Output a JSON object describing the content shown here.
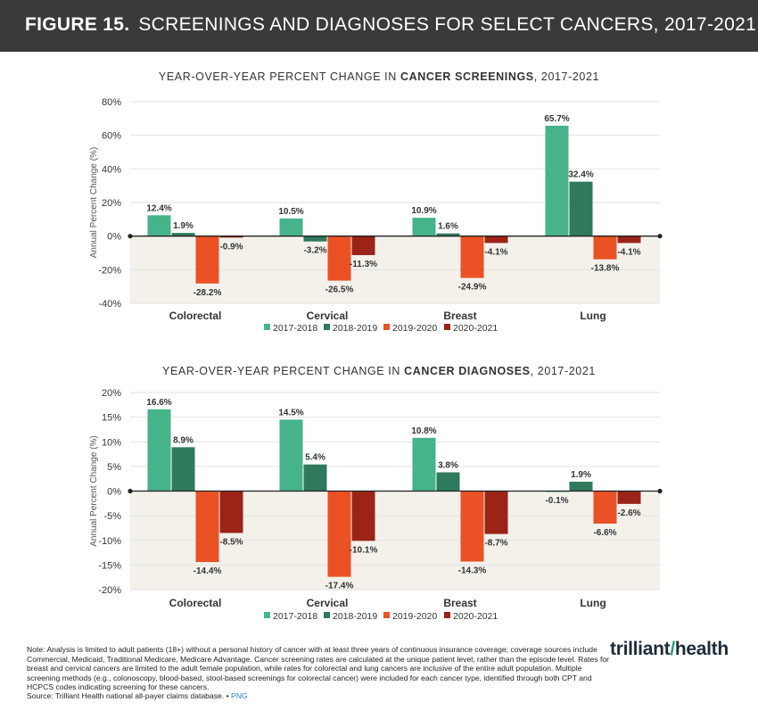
{
  "header": {
    "figure_label": "FIGURE 15.",
    "title": "SCREENINGS AND DIAGNOSES FOR SELECT CANCERS, 2017-2021"
  },
  "colors": {
    "2017-2018": "#46b38a",
    "2018-2019": "#2f7a5c",
    "2019-2020": "#ea5124",
    "2020-2021": "#9b2318",
    "negative_band": "#f3f1ea",
    "header_bg": "#3a3a3a"
  },
  "chart_data": [
    {
      "type": "bar",
      "title_prefix": "YEAR-OVER-YEAR PERCENT CHANGE IN ",
      "title_bold": "CANCER SCREENINGS",
      "title_suffix": ", 2017-2021",
      "ylabel": "Annual Percent Change (%)",
      "ylim": [
        -40,
        80
      ],
      "yticks": [
        80,
        60,
        40,
        20,
        0,
        -20,
        -40
      ],
      "ytick_labels": [
        "80%",
        "60%",
        "40%",
        "20%",
        "0%",
        "-20%",
        "-40%"
      ],
      "categories": [
        "Colorectal",
        "Cervical",
        "Breast",
        "Lung"
      ],
      "series": [
        {
          "name": "2017-2018",
          "values": [
            12.4,
            10.5,
            10.9,
            65.7
          ],
          "labels": [
            "12.4%",
            "10.5%",
            "10.9%",
            "65.7%"
          ]
        },
        {
          "name": "2018-2019",
          "values": [
            1.9,
            -3.2,
            1.6,
            32.4
          ],
          "labels": [
            "1.9%",
            "-3.2%",
            "1.6%",
            "32.4%"
          ]
        },
        {
          "name": "2019-2020",
          "values": [
            -28.2,
            -26.5,
            -24.9,
            -13.8
          ],
          "labels": [
            "-28.2%",
            "-26.5%",
            "-24.9%",
            "-13.8%"
          ]
        },
        {
          "name": "2020-2021",
          "values": [
            -0.9,
            -11.3,
            -4.1,
            -4.1
          ],
          "labels": [
            "-0.9%",
            "-11.3%",
            "-4.1%",
            "-4.1%"
          ]
        }
      ],
      "legend_position": "bottom"
    },
    {
      "type": "bar",
      "title_prefix": "YEAR-OVER-YEAR PERCENT CHANGE IN ",
      "title_bold": "CANCER DIAGNOSES",
      "title_suffix": ", 2017-2021",
      "ylabel": "Annual Percent Change (%)",
      "ylim": [
        -20,
        20
      ],
      "yticks": [
        20,
        15,
        10,
        5,
        0,
        -5,
        -10,
        -15,
        -20
      ],
      "ytick_labels": [
        "20%",
        "15%",
        "10%",
        "5%",
        "0%",
        "-5%",
        "-10%",
        "-15%",
        "-20%"
      ],
      "categories": [
        "Colorectal",
        "Cervical",
        "Breast",
        "Lung"
      ],
      "series": [
        {
          "name": "2017-2018",
          "values": [
            16.6,
            14.5,
            10.8,
            -0.1
          ],
          "labels": [
            "16.6%",
            "14.5%",
            "10.8%",
            "-0.1%"
          ]
        },
        {
          "name": "2018-2019",
          "values": [
            8.9,
            5.4,
            3.8,
            1.9
          ],
          "labels": [
            "8.9%",
            "5.4%",
            "3.8%",
            "1.9%"
          ]
        },
        {
          "name": "2019-2020",
          "values": [
            -14.4,
            -17.4,
            -14.3,
            -6.6
          ],
          "labels": [
            "-14.4%",
            "-17.4%",
            "-14.3%",
            "-6.6%"
          ]
        },
        {
          "name": "2020-2021",
          "values": [
            -8.5,
            -10.1,
            -8.7,
            -2.6
          ],
          "labels": [
            "-8.5%",
            "-10.1%",
            "-8.7%",
            "-2.6%"
          ]
        }
      ],
      "legend_position": "bottom"
    }
  ],
  "footer": {
    "note": "Note: Analysis is limited to adult patients (18+) without a personal history of cancer with at least three years of continuous insurance coverage; coverage sources include Commercial, Medicaid, Traditional Medicare, Medicare Advantage. Cancer screening rates are calculated at the unique patient level, rather than the episode level. Rates for breast and cervical cancers are limited to the adult female population, while rates for colorectal and lung cancers are inclusive of the entire adult population. Multiple screening methods (e.g., colonoscopy, blood-based, stool-based screenings for colorectal cancer) were included for each cancer type, identified through both CPT and HCPCS codes indicating screening for these cancers.",
    "source": "Source: Trilliant Health national all-payer claims database.",
    "separator": "•",
    "png_link": "PNG",
    "logo_left": "trilliant",
    "logo_slash": "/",
    "logo_right": "health"
  }
}
